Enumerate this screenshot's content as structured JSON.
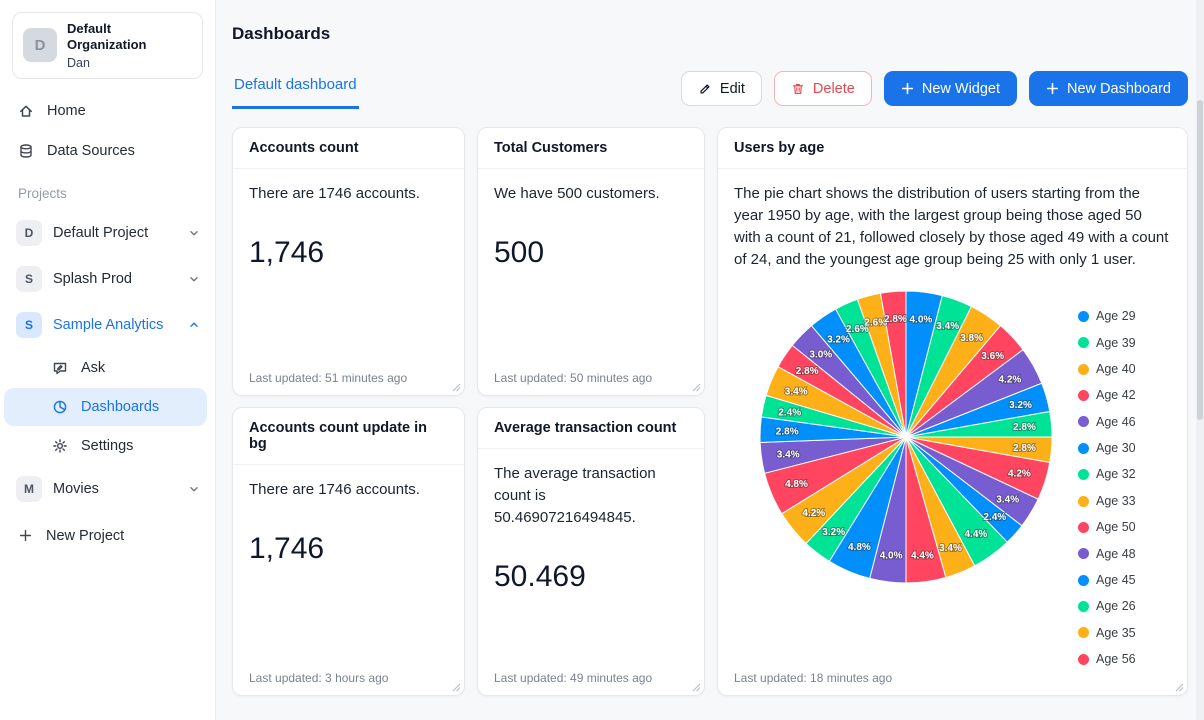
{
  "colors": {
    "accent": "#1a73e8",
    "danger": "#e5484d",
    "sidebar_active_bg": "#e3eefc"
  },
  "sidebar": {
    "org": {
      "initial": "D",
      "name": "Default Organization",
      "user": "Dan"
    },
    "nav": [
      {
        "label": "Home",
        "icon": "home-icon"
      },
      {
        "label": "Data Sources",
        "icon": "database-icon"
      }
    ],
    "projects_label": "Projects",
    "projects": [
      {
        "initial": "D",
        "label": "Default Project",
        "state": "collapsed"
      },
      {
        "initial": "S",
        "label": "Splash Prod",
        "state": "collapsed"
      },
      {
        "initial": "S",
        "label": "Sample Analytics",
        "state": "expanded",
        "active": true
      },
      {
        "initial": "M",
        "label": "Movies",
        "state": "collapsed"
      }
    ],
    "sample_analytics_children": [
      {
        "label": "Ask",
        "icon": "ask-chat-icon"
      },
      {
        "label": "Dashboards",
        "icon": "dashboards-pie-icon",
        "active": true
      },
      {
        "label": "Settings",
        "icon": "gear-icon"
      }
    ],
    "new_project": "New Project"
  },
  "header": {
    "title": "Dashboards"
  },
  "tabs": [
    {
      "label": "Default dashboard",
      "active": true
    }
  ],
  "toolbar": {
    "edit": "Edit",
    "delete": "Delete",
    "new_widget": "New Widget",
    "new_dashboard": "New Dashboard"
  },
  "widgets": [
    {
      "title": "Accounts count",
      "text": "There are 1746 accounts.",
      "value": "1,746",
      "updated": "Last updated: 51 minutes ago"
    },
    {
      "title": "Total Customers",
      "text": "We have 500 customers.",
      "value": "500",
      "updated": "Last updated: 50 minutes ago"
    },
    {
      "title": "Accounts count update in bg",
      "text": "There are 1746 accounts.",
      "value": "1,746",
      "updated": "Last updated: 3 hours ago"
    },
    {
      "title": "Average transaction count",
      "text": "The average transaction count is 50.46907216494845.",
      "value": "50.469",
      "updated": "Last updated: 49 minutes ago"
    }
  ],
  "pie_widget": {
    "title": "Users by age",
    "description": "The pie chart shows the distribution of users starting from the year 1950 by age, with the largest group being those aged 50 with a count of 21, followed closely by those aged 49 with a count of 24, and the youngest age group being 25 with only 1 user.",
    "updated": "Last updated: 18 minutes ago"
  },
  "chart_data": {
    "type": "pie",
    "title": "Users by age",
    "legend_position": "right",
    "labels_format": "percent",
    "palette": [
      "#008FFB",
      "#00E396",
      "#FEB019",
      "#FF4560",
      "#775DD0"
    ],
    "legend": [
      "Age 29",
      "Age 39",
      "Age 40",
      "Age 42",
      "Age 46",
      "Age 30",
      "Age 32",
      "Age 33",
      "Age 50",
      "Age 48",
      "Age 45",
      "Age 26",
      "Age 35",
      "Age 56"
    ],
    "slices_pct": [
      4.0,
      3.4,
      3.8,
      3.6,
      4.2,
      3.2,
      2.8,
      2.8,
      4.2,
      3.4,
      2.4,
      4.4,
      3.4,
      4.4,
      4.0,
      4.8,
      3.2,
      4.2,
      4.8,
      3.4,
      2.8,
      2.4,
      3.4,
      2.8,
      3.0,
      3.2,
      2.6,
      2.6,
      2.8
    ]
  }
}
